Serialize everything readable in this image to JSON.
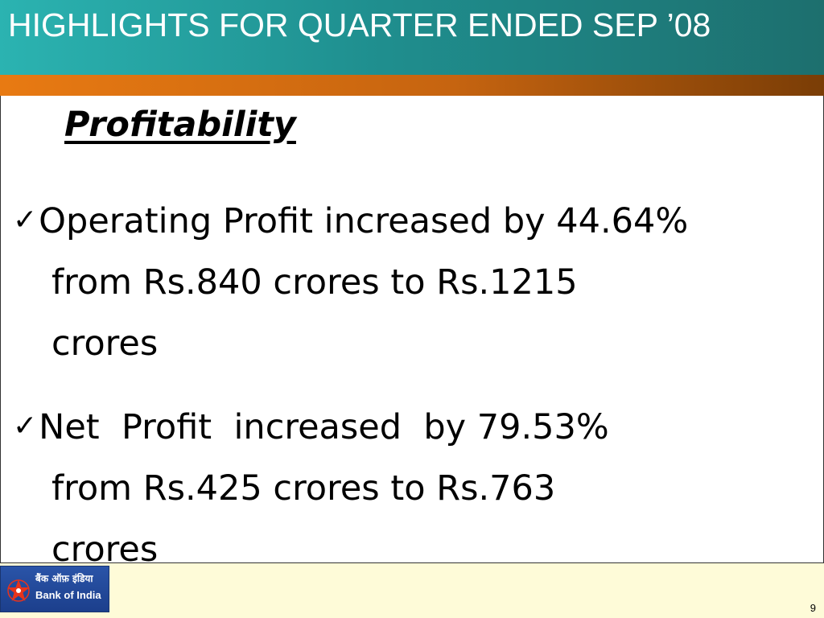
{
  "slide": {
    "title": "HIGHLIGHTS FOR QUARTER ENDED SEP ’08",
    "heading": "Profitability",
    "bullets": [
      {
        "lines": [
          "Operating Profit increased by 44.64%",
          "from Rs.840 crores to Rs.1215",
          "crores"
        ]
      },
      {
        "lines": [
          "Net  Profit  increased  by 79.53%",
          "from Rs.425 crores to Rs.763",
          "crores"
        ]
      }
    ],
    "check_glyph": "✓",
    "page_number": "9"
  },
  "logo": {
    "hindi": "बैंक ऑफ़ इंडिया",
    "english": "Bank of India",
    "icon": "star-icon",
    "colors": {
      "background": "#1f4596",
      "star": "#e8331c"
    }
  },
  "colors": {
    "title_bar": "#1f8f8f",
    "accent_bar": "#e87a12",
    "footer": "#fefbd8"
  }
}
